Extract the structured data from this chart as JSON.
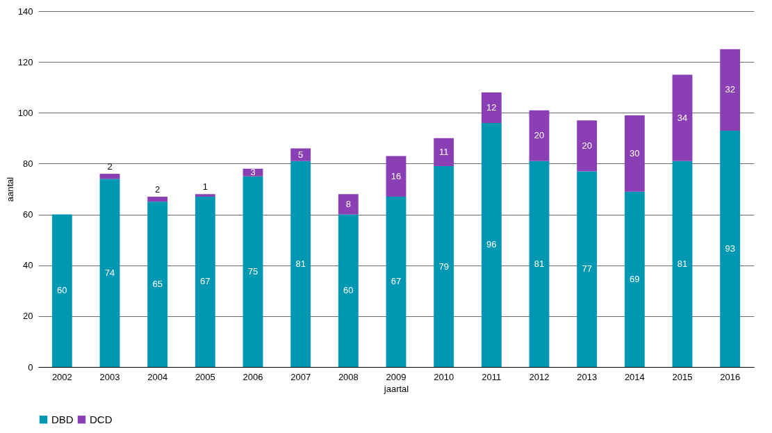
{
  "chart_data": {
    "type": "bar",
    "stacked": true,
    "xlabel": "jaartal",
    "ylabel": "aantal",
    "categories": [
      "2002",
      "2003",
      "2004",
      "2005",
      "2006",
      "2007",
      "2008",
      "2009",
      "2010",
      "2011",
      "2012",
      "2013",
      "2014",
      "2015",
      "2016"
    ],
    "series": [
      {
        "name": "DBD",
        "color": "#0097b2",
        "values": [
          60,
          74,
          65,
          67,
          75,
          81,
          60,
          67,
          79,
          96,
          81,
          77,
          69,
          81,
          93
        ]
      },
      {
        "name": "DCD",
        "color": "#8a40b4",
        "values": [
          null,
          2,
          2,
          1,
          3,
          5,
          8,
          16,
          11,
          12,
          20,
          20,
          30,
          34,
          32
        ]
      }
    ],
    "data_labels": true,
    "ylim": [
      0,
      140
    ],
    "yticks": [
      0,
      20,
      40,
      60,
      80,
      100,
      120,
      140
    ],
    "grid": "y",
    "legend": "bottom"
  }
}
